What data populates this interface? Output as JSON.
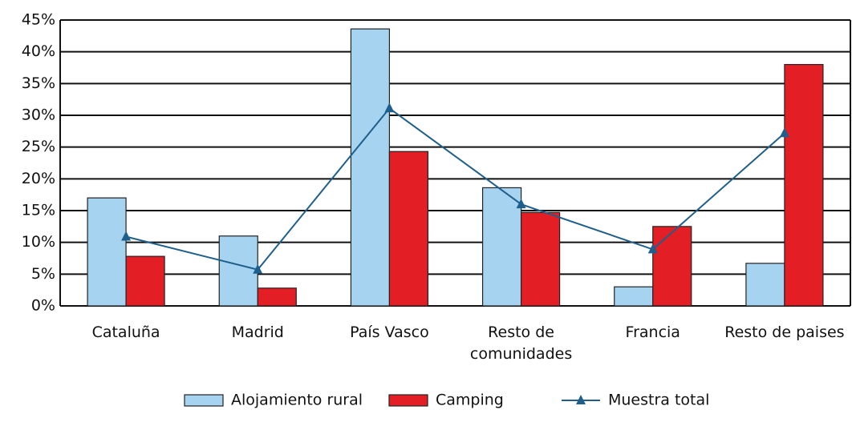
{
  "chart_data": {
    "type": "bar",
    "categories": [
      "Cataluña",
      "Madrid",
      "País Vasco",
      "Resto de comunidades",
      "Francia",
      "Resto de paises"
    ],
    "series": [
      {
        "name": "Alojamiento rural",
        "color": "#a6d4f0",
        "values": [
          17.0,
          11.0,
          43.6,
          18.6,
          3.0,
          6.7
        ]
      },
      {
        "name": "Camping",
        "color": "#e31e24",
        "values": [
          7.8,
          2.8,
          24.3,
          14.7,
          12.5,
          38.0
        ]
      },
      {
        "name": "Muestra total",
        "type": "line",
        "color": "#1f5f8b",
        "values": [
          10.9,
          5.7,
          31.1,
          16.0,
          8.9,
          27.2
        ]
      }
    ],
    "ylim": [
      0,
      45
    ],
    "yticks": [
      {
        "value": 0,
        "label": "0%"
      },
      {
        "value": 5,
        "label": "5%"
      },
      {
        "value": 10,
        "label": "10%"
      },
      {
        "value": 15,
        "label": "15%"
      },
      {
        "value": 20,
        "label": "20%"
      },
      {
        "value": 25,
        "label": "25%"
      },
      {
        "value": 30,
        "label": "30%"
      },
      {
        "value": 35,
        "label": "35%"
      },
      {
        "value": 40,
        "label": "40%"
      },
      {
        "value": 45,
        "label": "45%"
      }
    ],
    "grid": true,
    "legend": "bottom"
  }
}
